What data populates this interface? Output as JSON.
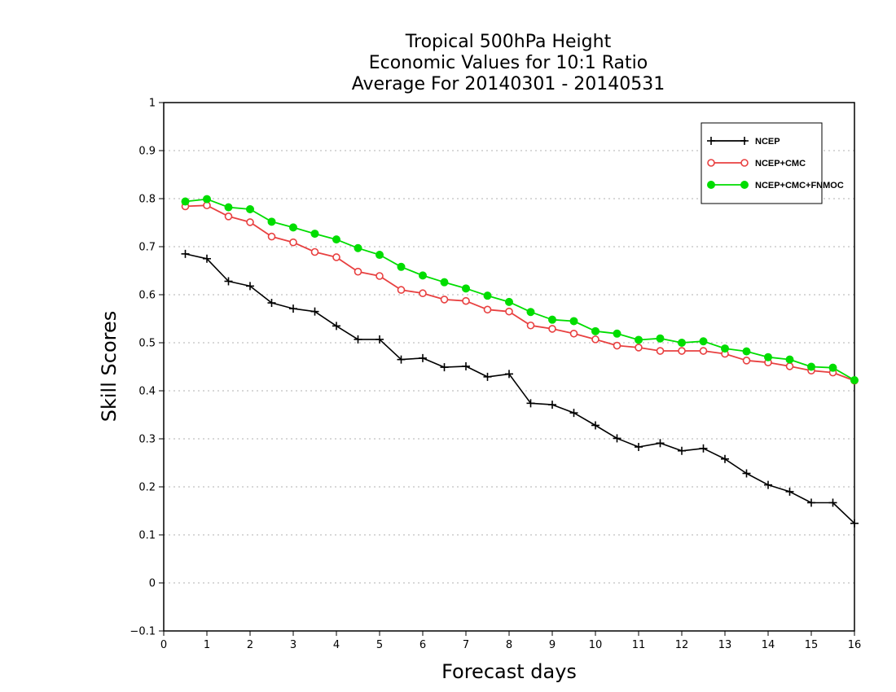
{
  "chart_data": {
    "type": "line",
    "title": [
      "Tropical 500hPa Height",
      "Economic Values for 10:1 Ratio",
      "Average For 20140301 - 20140531"
    ],
    "xlabel": "Forecast days",
    "ylabel": "Skill Scores",
    "xlim": [
      0,
      16
    ],
    "ylim": [
      -0.1,
      1
    ],
    "xticks": [
      "0",
      "1",
      "2",
      "3",
      "4",
      "5",
      "6",
      "7",
      "8",
      "9",
      "10",
      "11",
      "12",
      "13",
      "14",
      "15",
      "16"
    ],
    "yticks": [
      "−0.1",
      "0",
      "0.1",
      "0.2",
      "0.3",
      "0.4",
      "0.5",
      "0.6",
      "0.7",
      "0.8",
      "0.9",
      "1"
    ],
    "grid": true,
    "legend_position": "top-right",
    "x": [
      0.5,
      1,
      1.5,
      2,
      2.5,
      3,
      3.5,
      4,
      4.5,
      5,
      5.5,
      6,
      6.5,
      7,
      7.5,
      8,
      8.5,
      9,
      9.5,
      10,
      10.5,
      11,
      11.5,
      12,
      12.5,
      13,
      13.5,
      14,
      14.5,
      15,
      15.5,
      16
    ],
    "series": [
      {
        "name": "NCEP",
        "color": "#000000",
        "marker": "plus",
        "values": [
          0.685,
          0.675,
          0.628,
          0.618,
          0.583,
          0.571,
          0.565,
          0.535,
          0.507,
          0.507,
          0.465,
          0.468,
          0.449,
          0.451,
          0.429,
          0.435,
          0.374,
          0.371,
          0.354,
          0.328,
          0.301,
          0.283,
          0.291,
          0.275,
          0.28,
          0.258,
          0.228,
          0.204,
          0.19,
          0.167,
          0.167,
          0.124
        ]
      },
      {
        "name": "NCEP+CMC",
        "color": "#e84040",
        "marker": "open-circle",
        "values": [
          0.784,
          0.786,
          0.763,
          0.751,
          0.721,
          0.709,
          0.689,
          0.678,
          0.648,
          0.639,
          0.61,
          0.603,
          0.59,
          0.587,
          0.569,
          0.565,
          0.536,
          0.529,
          0.519,
          0.507,
          0.494,
          0.49,
          0.483,
          0.483,
          0.483,
          0.477,
          0.463,
          0.459,
          0.451,
          0.442,
          0.438,
          0.421
        ]
      },
      {
        "name": "NCEP+CMC+FNMOC",
        "color": "#00dd00",
        "marker": "filled-circle",
        "values": [
          0.794,
          0.799,
          0.782,
          0.778,
          0.752,
          0.74,
          0.727,
          0.715,
          0.697,
          0.683,
          0.658,
          0.64,
          0.626,
          0.613,
          0.598,
          0.585,
          0.564,
          0.548,
          0.545,
          0.524,
          0.519,
          0.506,
          0.509,
          0.5,
          0.503,
          0.488,
          0.482,
          0.47,
          0.465,
          0.45,
          0.448,
          0.422
        ]
      }
    ]
  }
}
